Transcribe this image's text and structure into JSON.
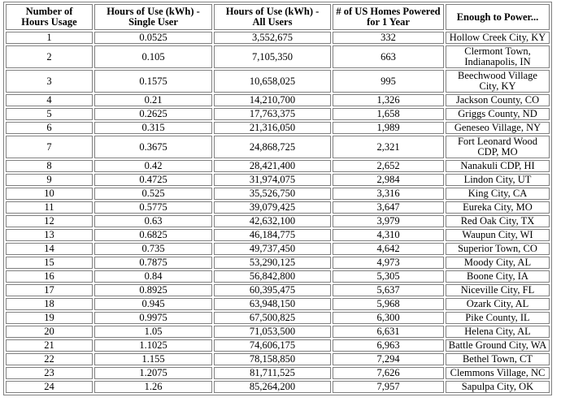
{
  "display": {
    "headers": [
      "Number of\nHours Usage",
      "Hours of Use (kWh) -\nSingle User",
      "Hours of Use (kWh) -\nAll Users",
      "# of US Homes Powered\nfor 1 Year",
      "Enough to Power..."
    ],
    "border_color": "#808080",
    "text_color": "#000000",
    "background_color": "#ffffff"
  },
  "chart_data": {
    "type": "table",
    "title": "",
    "columns": [
      "Number of Hours Usage",
      "Hours of Use (kWh) - Single User",
      "Hours of Use (kWh) - All Users",
      "# of US Homes Powered for 1 Year",
      "Enough to Power..."
    ],
    "rows": [
      [
        "1",
        "0.0525",
        "3,552,675",
        "332",
        "Hollow Creek City, KY"
      ],
      [
        "2",
        "0.105",
        "7,105,350",
        "663",
        "Clermont Town, Indianapolis, IN"
      ],
      [
        "3",
        "0.1575",
        "10,658,025",
        "995",
        "Beechwood Village City, KY"
      ],
      [
        "4",
        "0.21",
        "14,210,700",
        "1,326",
        "Jackson County, CO"
      ],
      [
        "5",
        "0.2625",
        "17,763,375",
        "1,658",
        "Griggs County, ND"
      ],
      [
        "6",
        "0.315",
        "21,316,050",
        "1,989",
        "Geneseo Village, NY"
      ],
      [
        "7",
        "0.3675",
        "24,868,725",
        "2,321",
        "Fort Leonard Wood CDP, MO"
      ],
      [
        "8",
        "0.42",
        "28,421,400",
        "2,652",
        "Nanakuli CDP, HI"
      ],
      [
        "9",
        "0.4725",
        "31,974,075",
        "2,984",
        "Lindon City, UT"
      ],
      [
        "10",
        "0.525",
        "35,526,750",
        "3,316",
        "King City, CA"
      ],
      [
        "11",
        "0.5775",
        "39,079,425",
        "3,647",
        "Eureka City, MO"
      ],
      [
        "12",
        "0.63",
        "42,632,100",
        "3,979",
        "Red Oak City, TX"
      ],
      [
        "13",
        "0.6825",
        "46,184,775",
        "4,310",
        "Waupun City, WI"
      ],
      [
        "14",
        "0.735",
        "49,737,450",
        "4,642",
        "Superior Town, CO"
      ],
      [
        "15",
        "0.7875",
        "53,290,125",
        "4,973",
        "Moody City, AL"
      ],
      [
        "16",
        "0.84",
        "56,842,800",
        "5,305",
        "Boone City, IA"
      ],
      [
        "17",
        "0.8925",
        "60,395,475",
        "5,637",
        "Niceville City, FL"
      ],
      [
        "18",
        "0.945",
        "63,948,150",
        "5,968",
        "Ozark City, AL"
      ],
      [
        "19",
        "0.9975",
        "67,500,825",
        "6,300",
        "Pike County, IL"
      ],
      [
        "20",
        "1.05",
        "71,053,500",
        "6,631",
        "Helena City, AL"
      ],
      [
        "21",
        "1.1025",
        "74,606,175",
        "6,963",
        "Battle Ground City, WA"
      ],
      [
        "22",
        "1.155",
        "78,158,850",
        "7,294",
        "Bethel Town, CT"
      ],
      [
        "23",
        "1.2075",
        "81,711,525",
        "7,626",
        "Clemmons Village, NC"
      ],
      [
        "24",
        "1.26",
        "85,264,200",
        "7,957",
        "Sapulpa City, OK"
      ]
    ]
  }
}
